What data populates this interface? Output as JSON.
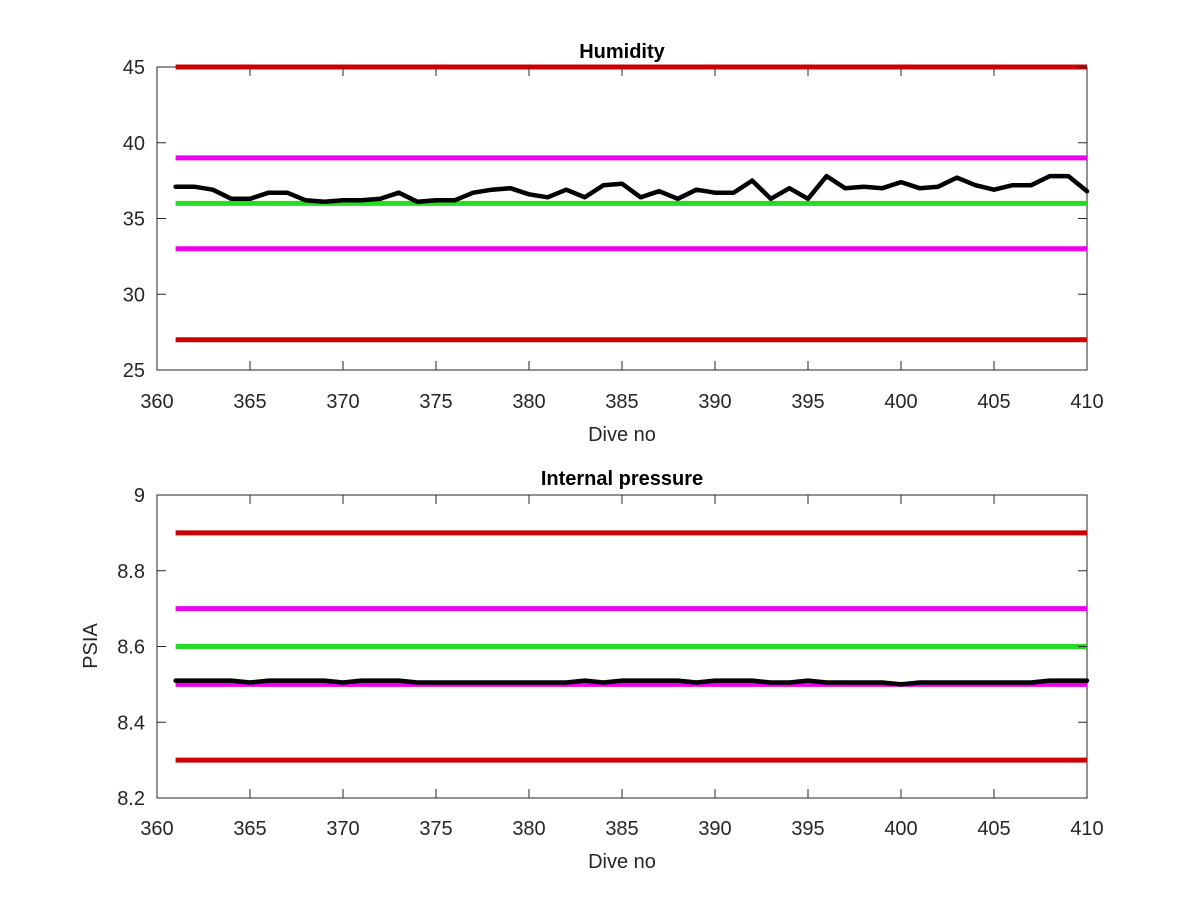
{
  "chart_data": [
    {
      "type": "line",
      "title": "Humidity",
      "xlabel": "Dive no",
      "ylabel": "",
      "xlim": [
        360,
        410
      ],
      "ylim": [
        25,
        45
      ],
      "xticks": [
        360,
        365,
        370,
        375,
        380,
        385,
        390,
        395,
        400,
        405,
        410
      ],
      "yticks": [
        25,
        30,
        35,
        40,
        45
      ],
      "grid": false,
      "threshold_lines": [
        {
          "value": 45,
          "color": "#cc0000"
        },
        {
          "value": 39,
          "color": "#ee00ee"
        },
        {
          "value": 36,
          "color": "#22dd22"
        },
        {
          "value": 33,
          "color": "#ee00ee"
        },
        {
          "value": 27,
          "color": "#cc0000"
        }
      ],
      "series": [
        {
          "color": "#000000",
          "x": [
            361,
            362,
            363,
            364,
            365,
            366,
            367,
            368,
            369,
            370,
            371,
            372,
            373,
            374,
            375,
            376,
            377,
            378,
            379,
            380,
            381,
            382,
            383,
            384,
            385,
            386,
            387,
            388,
            389,
            390,
            391,
            392,
            393,
            394,
            395,
            396,
            397,
            398,
            399,
            400,
            401,
            402,
            403,
            404,
            405,
            406,
            407,
            408,
            409,
            410
          ],
          "values": [
            37.1,
            37.1,
            36.9,
            36.3,
            36.3,
            36.7,
            36.7,
            36.2,
            36.1,
            36.2,
            36.2,
            36.3,
            36.7,
            36.1,
            36.2,
            36.2,
            36.7,
            36.9,
            37.0,
            36.6,
            36.4,
            36.9,
            36.4,
            37.2,
            37.3,
            36.4,
            36.8,
            36.3,
            36.9,
            36.7,
            36.7,
            37.5,
            36.3,
            37.0,
            36.3,
            37.8,
            37.0,
            37.1,
            37.0,
            37.4,
            37.0,
            37.1,
            37.7,
            37.2,
            36.9,
            37.2,
            37.2,
            37.8,
            37.8,
            36.8
          ]
        }
      ]
    },
    {
      "type": "line",
      "title": "Internal pressure",
      "xlabel": "Dive no",
      "ylabel": "PSIA",
      "xlim": [
        360,
        410
      ],
      "ylim": [
        8.2,
        9
      ],
      "xticks": [
        360,
        365,
        370,
        375,
        380,
        385,
        390,
        395,
        400,
        405,
        410
      ],
      "yticks": [
        8.2,
        8.4,
        8.6,
        8.8,
        9
      ],
      "grid": false,
      "threshold_lines": [
        {
          "value": 8.9,
          "color": "#cc0000"
        },
        {
          "value": 8.7,
          "color": "#ee00ee"
        },
        {
          "value": 8.6,
          "color": "#22dd22"
        },
        {
          "value": 8.5,
          "color": "#ee00ee"
        },
        {
          "value": 8.3,
          "color": "#cc0000"
        }
      ],
      "series": [
        {
          "color": "#000000",
          "x": [
            361,
            362,
            363,
            364,
            365,
            366,
            367,
            368,
            369,
            370,
            371,
            372,
            373,
            374,
            375,
            376,
            377,
            378,
            379,
            380,
            381,
            382,
            383,
            384,
            385,
            386,
            387,
            388,
            389,
            390,
            391,
            392,
            393,
            394,
            395,
            396,
            397,
            398,
            399,
            400,
            401,
            402,
            403,
            404,
            405,
            406,
            407,
            408,
            409,
            410
          ],
          "values": [
            8.51,
            8.51,
            8.51,
            8.51,
            8.505,
            8.51,
            8.51,
            8.51,
            8.51,
            8.505,
            8.51,
            8.51,
            8.51,
            8.505,
            8.505,
            8.505,
            8.505,
            8.505,
            8.505,
            8.505,
            8.505,
            8.505,
            8.51,
            8.505,
            8.51,
            8.51,
            8.51,
            8.51,
            8.505,
            8.51,
            8.51,
            8.51,
            8.505,
            8.505,
            8.51,
            8.505,
            8.505,
            8.505,
            8.505,
            8.5,
            8.505,
            8.505,
            8.505,
            8.505,
            8.505,
            8.505,
            8.505,
            8.51,
            8.51,
            8.51
          ]
        }
      ]
    }
  ]
}
